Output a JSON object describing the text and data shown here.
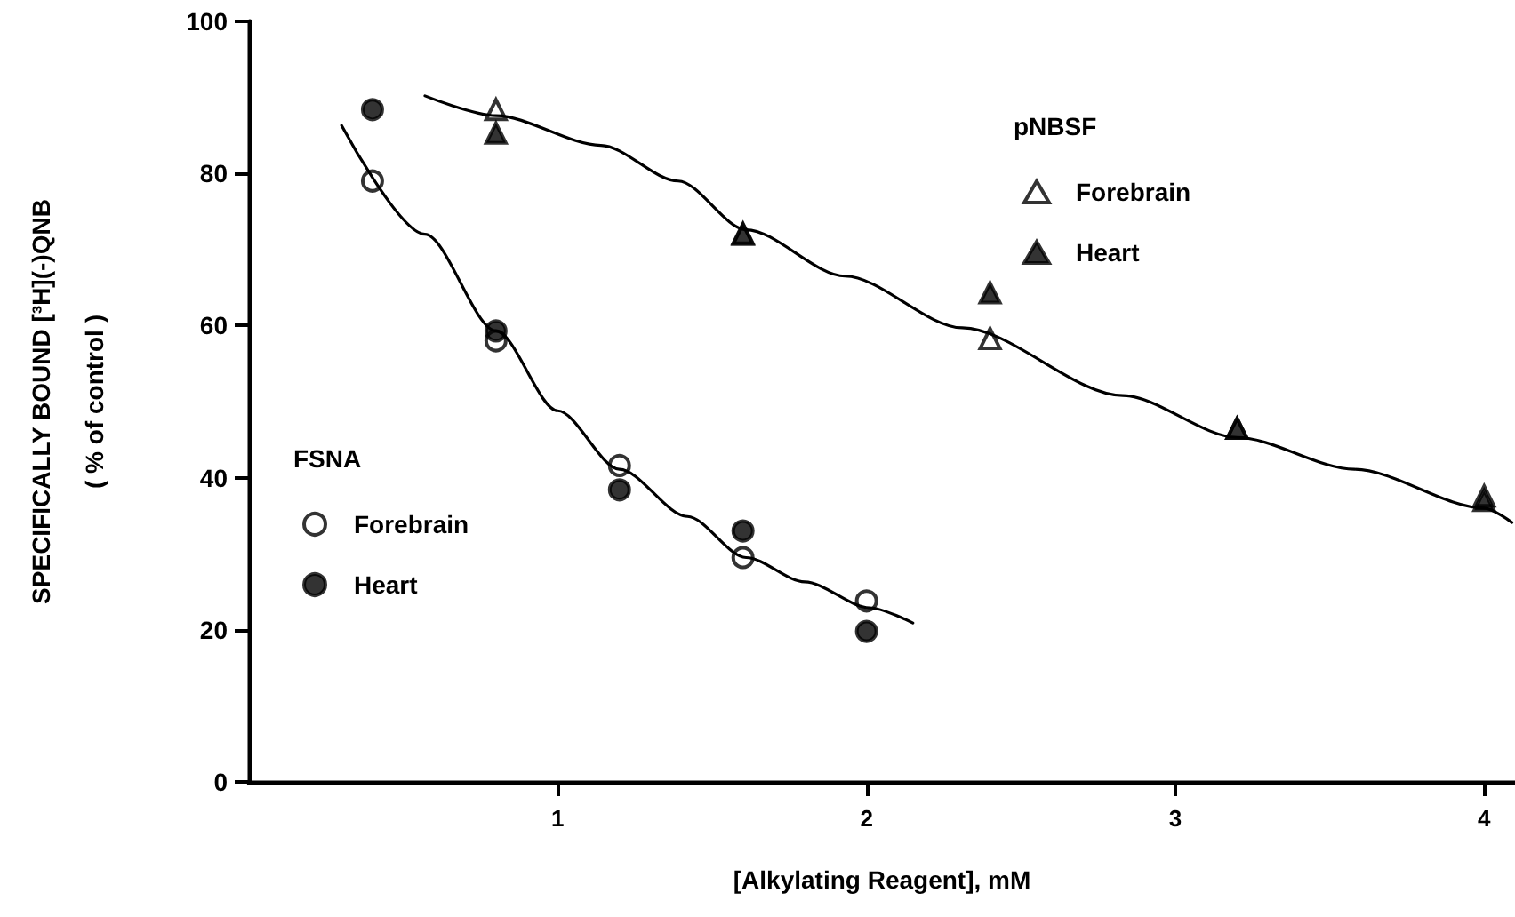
{
  "chart_data": {
    "type": "scatter",
    "xlabel": "[Alkylating Reagent], mM",
    "ylabel": "SPECIFICALLY BOUND [³H](-)QNB\n( % of control )",
    "xlim": [
      0,
      4.1
    ],
    "xticks": [
      1,
      2,
      3,
      4
    ],
    "ylim": [
      0,
      100
    ],
    "yticks": [
      0,
      20,
      40,
      60,
      80,
      100
    ],
    "grid": false,
    "legend": "center",
    "annotations": [
      "pNBSF",
      "FSNA"
    ],
    "series": [
      {
        "name": "Forebrain",
        "marker": "triangle",
        "color": "#ffffff",
        "x": [
          0.8,
          1.6,
          2.4,
          3.2,
          4.0
        ],
        "values": [
          88.4,
          72.1,
          58.3,
          46.5,
          37.6
        ]
      },
      {
        "name": "Heart",
        "marker": "triangle",
        "color": "#000000",
        "x": [
          0.8,
          1.6,
          2.4,
          3.2,
          4.0
        ],
        "values": [
          85.3,
          72,
          64.3,
          46.5,
          37
        ]
      },
      {
        "name": "Forebrain",
        "marker": "circle",
        "color": "#ffffff",
        "x": [
          0.4,
          0.8,
          1.2,
          1.6,
          2.0
        ],
        "values": [
          79,
          58,
          41.6,
          29.5,
          23.8
        ]
      },
      {
        "name": "Heart",
        "marker": "circle",
        "color": "#000000",
        "x": [
          0.4,
          0.8,
          1.2,
          1.6,
          2.0
        ],
        "values": [
          88.4,
          59.3,
          38.4,
          33,
          19.8
        ]
      },
      {
        "type": "line",
        "marker": "none",
        "line_style": "solid",
        "color": "#000000",
        "x": [
          0.57,
          0.8,
          1.14,
          1.39,
          1.61,
          1.93,
          2.31,
          2.83,
          3.2,
          3.58,
          4.0,
          4.09
        ],
        "values": [
          90.2,
          87.6,
          83.7,
          79,
          72.6,
          66.5,
          59.7,
          50.8,
          45.3,
          41.1,
          36,
          34.1
        ]
      },
      {
        "type": "line",
        "marker": "none",
        "line_style": "solid",
        "color": "#000000",
        "x": [
          0.3,
          0.57,
          0.8,
          1.0,
          1.2,
          1.42,
          1.61,
          1.8,
          2.01,
          2.15
        ],
        "values": [
          86.3,
          72,
          59.3,
          48.8,
          41.1,
          34.9,
          29.5,
          26.3,
          22.9,
          20.9
        ]
      }
    ]
  }
}
